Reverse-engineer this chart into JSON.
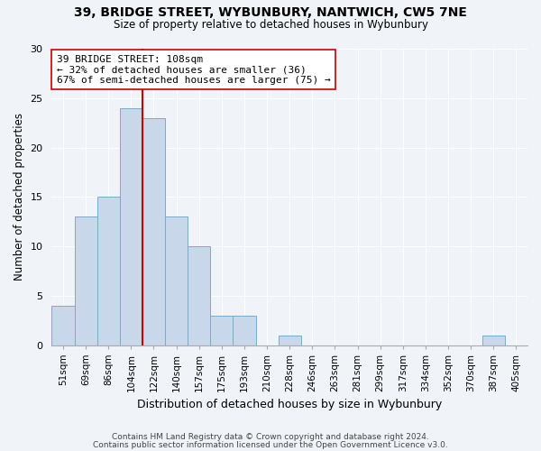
{
  "title1": "39, BRIDGE STREET, WYBUNBURY, NANTWICH, CW5 7NE",
  "title2": "Size of property relative to detached houses in Wybunbury",
  "xlabel": "Distribution of detached houses by size in Wybunbury",
  "ylabel": "Number of detached properties",
  "bar_labels": [
    "51sqm",
    "69sqm",
    "86sqm",
    "104sqm",
    "122sqm",
    "140sqm",
    "157sqm",
    "175sqm",
    "193sqm",
    "210sqm",
    "228sqm",
    "246sqm",
    "263sqm",
    "281sqm",
    "299sqm",
    "317sqm",
    "334sqm",
    "352sqm",
    "370sqm",
    "387sqm",
    "405sqm"
  ],
  "bar_heights": [
    4,
    13,
    15,
    24,
    23,
    13,
    10,
    3,
    3,
    0,
    1,
    0,
    0,
    0,
    0,
    0,
    0,
    0,
    0,
    1,
    0
  ],
  "bar_color": "#c8d8ea",
  "bar_edge_color": "#7aaaca",
  "vline_x": 3.5,
  "vline_color": "#cc0000",
  "annotation_text": "39 BRIDGE STREET: 108sqm\n← 32% of detached houses are smaller (36)\n67% of semi-detached houses are larger (75) →",
  "annotation_box_color": "#ffffff",
  "annotation_box_edge": "#cc0000",
  "ylim": [
    0,
    30
  ],
  "yticks": [
    0,
    5,
    10,
    15,
    20,
    25,
    30
  ],
  "footnote1": "Contains HM Land Registry data © Crown copyright and database right 2024.",
  "footnote2": "Contains public sector information licensed under the Open Government Licence v3.0.",
  "background_color": "#f0f4f8",
  "grid_color": "#ffffff"
}
